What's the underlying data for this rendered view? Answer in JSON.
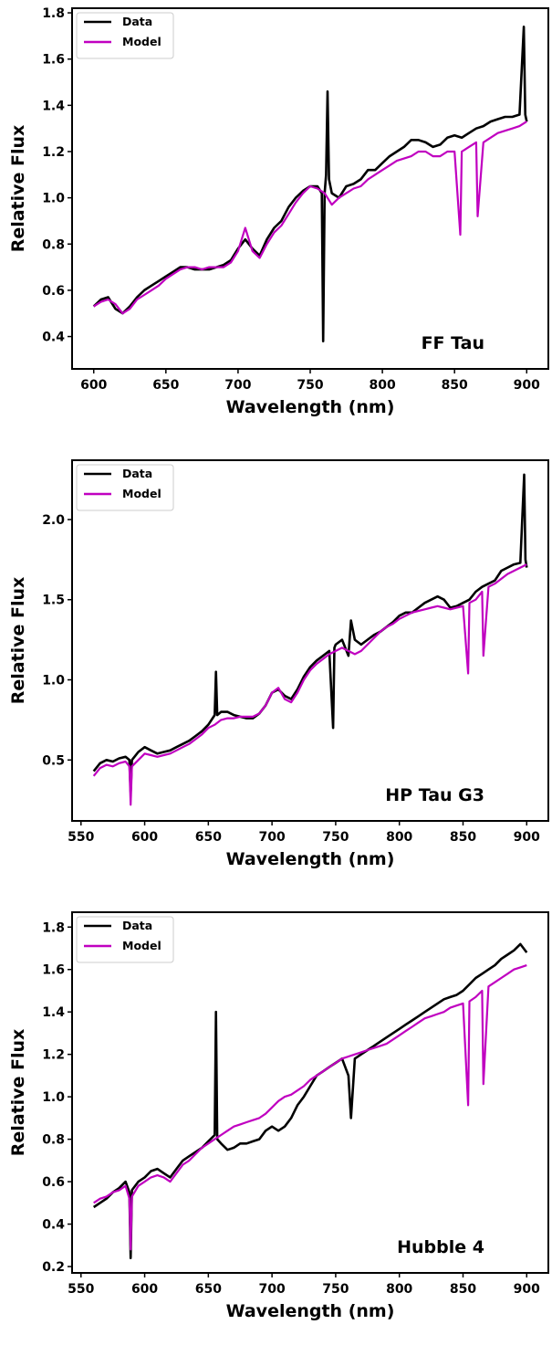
{
  "chart_data": [
    {
      "type": "line",
      "annotation": "FF Tau",
      "xlabel": "Wavelength (nm)",
      "ylabel": "Relative Flux",
      "xlim": [
        585,
        915
      ],
      "ylim": [
        0.26,
        1.82
      ],
      "xticks": [
        600,
        650,
        700,
        750,
        800,
        850,
        900
      ],
      "yticks": [
        0.4,
        0.6,
        0.8,
        1.0,
        1.2,
        1.4,
        1.6,
        1.8
      ],
      "ytick_labels": [
        "0.4",
        "0.6",
        "0.8",
        "1.0",
        "1.2",
        "1.4",
        "1.6",
        "1.8"
      ],
      "legend": {
        "placement": "top-left",
        "entries": [
          "Data",
          "Model"
        ]
      },
      "series": [
        {
          "name": "Data",
          "color": "#000000",
          "x": [
            600,
            605,
            610,
            615,
            620,
            625,
            630,
            635,
            640,
            645,
            650,
            655,
            660,
            665,
            670,
            675,
            680,
            685,
            690,
            695,
            700,
            705,
            710,
            715,
            720,
            725,
            730,
            735,
            740,
            745,
            750,
            755,
            758,
            759,
            760,
            761,
            762,
            763,
            765,
            770,
            775,
            780,
            785,
            790,
            795,
            800,
            805,
            810,
            815,
            820,
            825,
            830,
            835,
            840,
            845,
            850,
            855,
            860,
            865,
            870,
            875,
            880,
            885,
            890,
            895,
            898,
            899,
            900
          ],
          "y": [
            0.53,
            0.56,
            0.57,
            0.52,
            0.5,
            0.53,
            0.57,
            0.6,
            0.62,
            0.64,
            0.66,
            0.68,
            0.7,
            0.7,
            0.69,
            0.69,
            0.69,
            0.7,
            0.71,
            0.73,
            0.78,
            0.82,
            0.78,
            0.75,
            0.82,
            0.87,
            0.9,
            0.96,
            1.0,
            1.03,
            1.05,
            1.05,
            1.02,
            0.38,
            1.02,
            1.1,
            1.46,
            1.08,
            1.02,
            1.0,
            1.05,
            1.06,
            1.08,
            1.12,
            1.12,
            1.15,
            1.18,
            1.2,
            1.22,
            1.25,
            1.25,
            1.24,
            1.22,
            1.23,
            1.26,
            1.27,
            1.26,
            1.28,
            1.3,
            1.31,
            1.33,
            1.34,
            1.35,
            1.35,
            1.36,
            1.74,
            1.36,
            1.33
          ]
        },
        {
          "name": "Model",
          "color": "#c000c0",
          "x": [
            600,
            605,
            610,
            615,
            620,
            625,
            630,
            635,
            640,
            645,
            650,
            655,
            660,
            665,
            670,
            675,
            680,
            685,
            690,
            695,
            700,
            705,
            710,
            715,
            720,
            725,
            730,
            735,
            740,
            745,
            750,
            755,
            760,
            765,
            770,
            775,
            780,
            785,
            790,
            795,
            800,
            805,
            810,
            815,
            820,
            825,
            830,
            835,
            840,
            845,
            850,
            854,
            855,
            860,
            865,
            866,
            870,
            875,
            880,
            885,
            890,
            895,
            900
          ],
          "y": [
            0.53,
            0.55,
            0.56,
            0.54,
            0.5,
            0.52,
            0.56,
            0.58,
            0.6,
            0.62,
            0.65,
            0.67,
            0.69,
            0.7,
            0.7,
            0.69,
            0.7,
            0.7,
            0.7,
            0.72,
            0.77,
            0.87,
            0.77,
            0.74,
            0.8,
            0.85,
            0.88,
            0.93,
            0.98,
            1.02,
            1.05,
            1.04,
            1.02,
            0.97,
            1.0,
            1.02,
            1.04,
            1.05,
            1.08,
            1.1,
            1.12,
            1.14,
            1.16,
            1.17,
            1.18,
            1.2,
            1.2,
            1.18,
            1.18,
            1.2,
            1.2,
            0.84,
            1.2,
            1.22,
            1.24,
            0.92,
            1.24,
            1.26,
            1.28,
            1.29,
            1.3,
            1.31,
            1.33
          ]
        }
      ]
    },
    {
      "type": "line",
      "annotation": "HP Tau G3",
      "xlabel": "Wavelength (nm)",
      "ylabel": "Relative Flux",
      "xlim": [
        543,
        917
      ],
      "ylim": [
        0.12,
        2.37
      ],
      "xticks": [
        550,
        600,
        650,
        700,
        750,
        800,
        850,
        900
      ],
      "yticks": [
        0.5,
        1.0,
        1.5,
        2.0
      ],
      "ytick_labels": [
        "0.5",
        "1.0",
        "1.5",
        "2.0"
      ],
      "legend": {
        "placement": "top-left",
        "entries": [
          "Data",
          "Model"
        ]
      },
      "series": [
        {
          "name": "Data",
          "color": "#000000",
          "x": [
            560,
            565,
            570,
            575,
            580,
            585,
            588,
            589,
            590,
            595,
            600,
            605,
            610,
            615,
            620,
            625,
            630,
            635,
            640,
            645,
            650,
            655,
            656,
            657,
            660,
            665,
            670,
            675,
            680,
            685,
            690,
            695,
            700,
            705,
            710,
            715,
            720,
            725,
            730,
            735,
            740,
            745,
            748,
            749,
            750,
            755,
            760,
            762,
            765,
            770,
            775,
            780,
            785,
            790,
            795,
            800,
            805,
            810,
            815,
            820,
            825,
            830,
            835,
            840,
            845,
            850,
            855,
            860,
            865,
            870,
            875,
            880,
            885,
            890,
            895,
            898,
            899,
            900
          ],
          "y": [
            0.43,
            0.48,
            0.5,
            0.49,
            0.51,
            0.52,
            0.5,
            0.3,
            0.5,
            0.55,
            0.58,
            0.56,
            0.54,
            0.55,
            0.56,
            0.58,
            0.6,
            0.62,
            0.65,
            0.68,
            0.72,
            0.78,
            1.05,
            0.78,
            0.8,
            0.8,
            0.78,
            0.77,
            0.76,
            0.76,
            0.79,
            0.84,
            0.92,
            0.94,
            0.9,
            0.88,
            0.94,
            1.02,
            1.08,
            1.12,
            1.15,
            1.18,
            0.7,
            1.2,
            1.22,
            1.25,
            1.15,
            1.37,
            1.25,
            1.22,
            1.25,
            1.28,
            1.3,
            1.33,
            1.36,
            1.4,
            1.42,
            1.42,
            1.45,
            1.48,
            1.5,
            1.52,
            1.5,
            1.45,
            1.46,
            1.48,
            1.5,
            1.55,
            1.58,
            1.6,
            1.62,
            1.68,
            1.7,
            1.72,
            1.73,
            2.28,
            1.75,
            1.7
          ]
        },
        {
          "name": "Model",
          "color": "#c000c0",
          "x": [
            560,
            565,
            570,
            575,
            580,
            585,
            588,
            589,
            590,
            595,
            600,
            605,
            610,
            615,
            620,
            625,
            630,
            635,
            640,
            645,
            650,
            655,
            660,
            665,
            670,
            675,
            680,
            685,
            690,
            695,
            700,
            705,
            710,
            715,
            720,
            725,
            730,
            735,
            740,
            745,
            750,
            755,
            760,
            765,
            770,
            775,
            780,
            785,
            790,
            795,
            800,
            805,
            810,
            815,
            820,
            825,
            830,
            835,
            840,
            845,
            850,
            854,
            855,
            860,
            865,
            866,
            870,
            875,
            880,
            885,
            890,
            895,
            900
          ],
          "y": [
            0.4,
            0.45,
            0.47,
            0.46,
            0.48,
            0.49,
            0.46,
            0.22,
            0.46,
            0.5,
            0.54,
            0.53,
            0.52,
            0.53,
            0.54,
            0.56,
            0.58,
            0.6,
            0.63,
            0.66,
            0.7,
            0.72,
            0.75,
            0.76,
            0.76,
            0.77,
            0.77,
            0.77,
            0.79,
            0.84,
            0.92,
            0.95,
            0.88,
            0.86,
            0.92,
            1.0,
            1.06,
            1.1,
            1.13,
            1.16,
            1.18,
            1.2,
            1.18,
            1.16,
            1.18,
            1.22,
            1.26,
            1.3,
            1.33,
            1.35,
            1.38,
            1.4,
            1.42,
            1.43,
            1.44,
            1.45,
            1.46,
            1.45,
            1.44,
            1.45,
            1.46,
            1.04,
            1.48,
            1.5,
            1.55,
            1.15,
            1.58,
            1.6,
            1.63,
            1.66,
            1.68,
            1.7,
            1.72
          ]
        }
      ]
    },
    {
      "type": "line",
      "annotation": "Hubble 4",
      "xlabel": "Wavelength (nm)",
      "ylabel": "Relative Flux",
      "xlim": [
        543,
        917
      ],
      "ylim": [
        0.17,
        1.87
      ],
      "xticks": [
        550,
        600,
        650,
        700,
        750,
        800,
        850,
        900
      ],
      "yticks": [
        0.2,
        0.4,
        0.6,
        0.8,
        1.0,
        1.2,
        1.4,
        1.6,
        1.8
      ],
      "ytick_labels": [
        "0.2",
        "0.4",
        "0.6",
        "0.8",
        "1.0",
        "1.2",
        "1.4",
        "1.6",
        "1.8"
      ],
      "legend": {
        "placement": "top-left",
        "entries": [
          "Data",
          "Model"
        ]
      },
      "series": [
        {
          "name": "Data",
          "color": "#000000",
          "x": [
            560,
            565,
            570,
            575,
            580,
            585,
            588,
            589,
            590,
            595,
            600,
            605,
            610,
            615,
            620,
            625,
            630,
            635,
            640,
            645,
            650,
            655,
            656,
            657,
            660,
            665,
            670,
            675,
            680,
            685,
            690,
            695,
            700,
            705,
            710,
            715,
            720,
            725,
            730,
            735,
            740,
            745,
            750,
            755,
            760,
            762,
            765,
            770,
            775,
            780,
            785,
            790,
            795,
            800,
            805,
            810,
            815,
            820,
            825,
            830,
            835,
            840,
            845,
            850,
            855,
            860,
            865,
            870,
            875,
            880,
            885,
            890,
            895,
            900
          ],
          "y": [
            0.48,
            0.5,
            0.52,
            0.55,
            0.57,
            0.6,
            0.55,
            0.24,
            0.56,
            0.6,
            0.62,
            0.65,
            0.66,
            0.64,
            0.62,
            0.66,
            0.7,
            0.72,
            0.74,
            0.76,
            0.79,
            0.82,
            1.4,
            0.8,
            0.78,
            0.75,
            0.76,
            0.78,
            0.78,
            0.79,
            0.8,
            0.84,
            0.86,
            0.84,
            0.86,
            0.9,
            0.96,
            1.0,
            1.05,
            1.1,
            1.12,
            1.14,
            1.16,
            1.18,
            1.1,
            0.9,
            1.18,
            1.2,
            1.22,
            1.24,
            1.26,
            1.28,
            1.3,
            1.32,
            1.34,
            1.36,
            1.38,
            1.4,
            1.42,
            1.44,
            1.46,
            1.47,
            1.48,
            1.5,
            1.53,
            1.56,
            1.58,
            1.6,
            1.62,
            1.65,
            1.67,
            1.69,
            1.72,
            1.68
          ]
        },
        {
          "name": "Model",
          "color": "#c000c0",
          "x": [
            560,
            565,
            570,
            575,
            580,
            585,
            588,
            589,
            590,
            595,
            600,
            605,
            610,
            615,
            620,
            625,
            630,
            635,
            640,
            645,
            650,
            655,
            660,
            665,
            670,
            675,
            680,
            685,
            690,
            695,
            700,
            705,
            710,
            715,
            720,
            725,
            730,
            735,
            740,
            745,
            750,
            755,
            760,
            765,
            770,
            775,
            780,
            785,
            790,
            795,
            800,
            805,
            810,
            815,
            820,
            825,
            830,
            835,
            840,
            845,
            850,
            854,
            855,
            860,
            865,
            866,
            870,
            875,
            880,
            885,
            890,
            895,
            900
          ],
          "y": [
            0.5,
            0.52,
            0.53,
            0.55,
            0.56,
            0.58,
            0.52,
            0.28,
            0.53,
            0.58,
            0.6,
            0.62,
            0.63,
            0.62,
            0.6,
            0.64,
            0.68,
            0.7,
            0.73,
            0.76,
            0.78,
            0.8,
            0.82,
            0.84,
            0.86,
            0.87,
            0.88,
            0.89,
            0.9,
            0.92,
            0.95,
            0.98,
            1.0,
            1.01,
            1.03,
            1.05,
            1.08,
            1.1,
            1.12,
            1.14,
            1.16,
            1.18,
            1.19,
            1.2,
            1.21,
            1.22,
            1.23,
            1.24,
            1.25,
            1.27,
            1.29,
            1.31,
            1.33,
            1.35,
            1.37,
            1.38,
            1.39,
            1.4,
            1.42,
            1.43,
            1.44,
            0.96,
            1.45,
            1.47,
            1.5,
            1.06,
            1.52,
            1.54,
            1.56,
            1.58,
            1.6,
            1.61,
            1.62
          ]
        }
      ]
    }
  ]
}
